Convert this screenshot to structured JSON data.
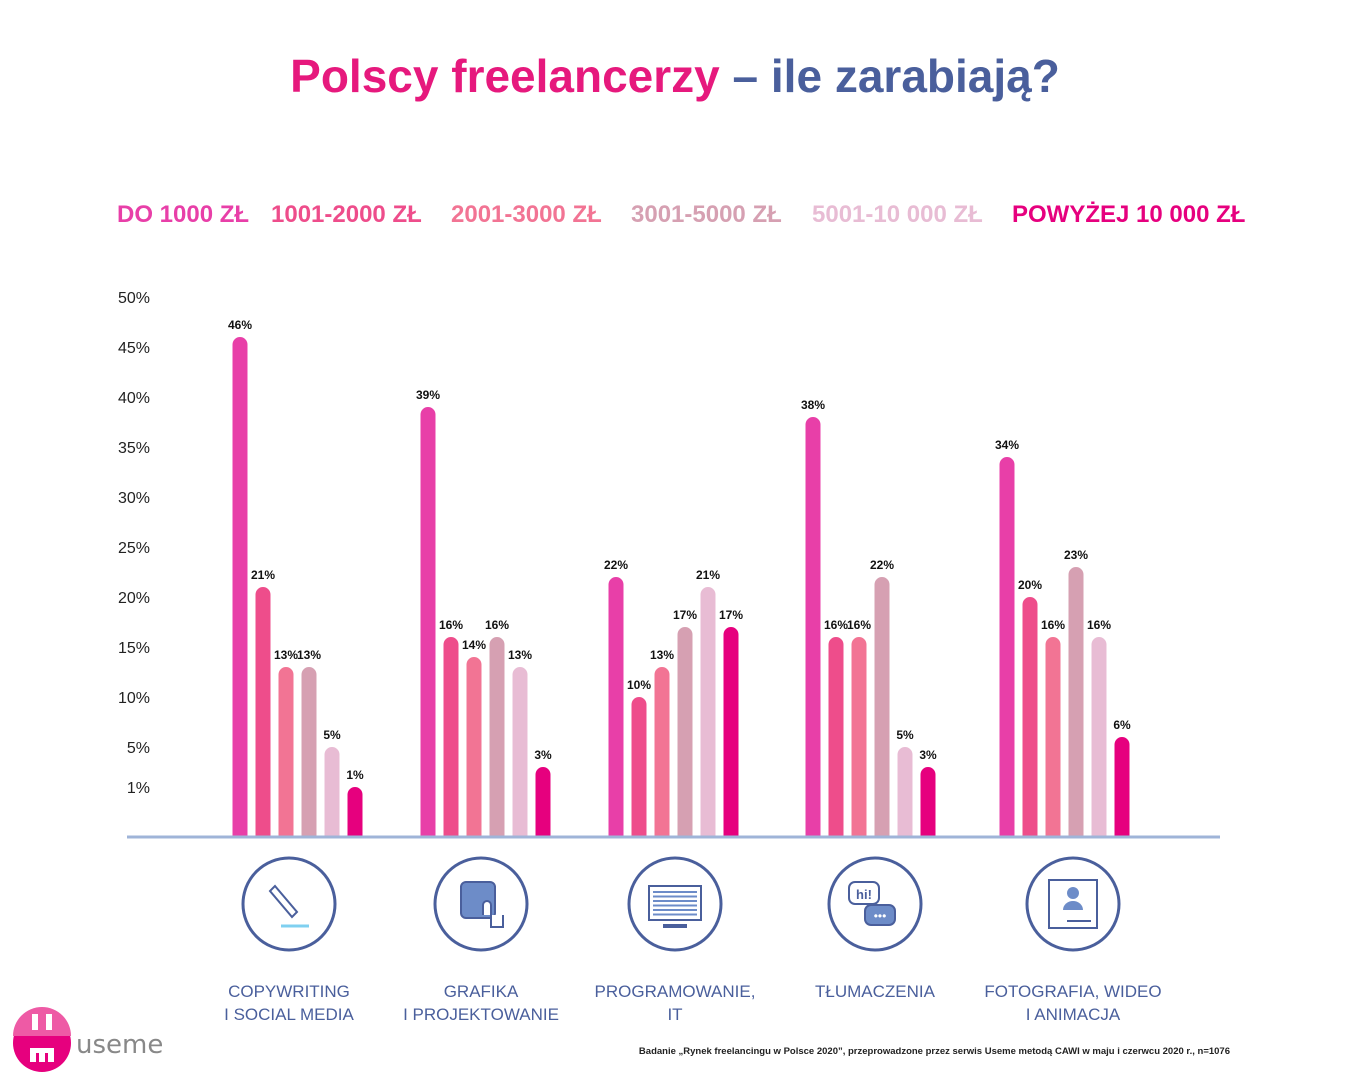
{
  "title": {
    "part1": "Polscy freelancerzy",
    "dash": " – ",
    "part2": "ile zarabiają?"
  },
  "colors": {
    "title_pink": "#e6197d",
    "title_blue": "#4a5f9c",
    "axis": "#9fb4d8",
    "icon_ring": "#4a5f9c",
    "category_text": "#4a5f9c"
  },
  "chart_data": {
    "type": "bar",
    "title": "Polscy freelancerzy – ile zarabiają?",
    "categories": [
      [
        "COPYWRITING",
        "I SOCIAL MEDIA"
      ],
      [
        "GRAFIKA",
        "I PROJEKTOWANIE"
      ],
      [
        "PROGRAMOWANIE,",
        "IT"
      ],
      [
        "TŁUMACZENIA"
      ],
      [
        "FOTOGRAFIA, WIDEO",
        "I ANIMACJA"
      ]
    ],
    "category_icons": [
      "pencil-icon",
      "tablet-stylus-icon",
      "monitor-icon",
      "chat-bubbles-icon",
      "profile-card-icon"
    ],
    "series": [
      {
        "name": "DO 1000 ZŁ",
        "color": "#e83fa8",
        "values": [
          46,
          39,
          22,
          38,
          34
        ]
      },
      {
        "name": "1001-2000 ZŁ",
        "color": "#ee4d8b",
        "values": [
          21,
          16,
          10,
          16,
          20
        ]
      },
      {
        "name": "2001-3000 ZŁ",
        "color": "#f27494",
        "values": [
          13,
          14,
          13,
          16,
          16
        ]
      },
      {
        "name": "3001-5000 ZŁ",
        "color": "#d6a0b2",
        "values": [
          13,
          16,
          17,
          22,
          23
        ]
      },
      {
        "name": "5001-10 000 ZŁ",
        "color": "#e8bcd4",
        "values": [
          5,
          13,
          21,
          5,
          16
        ]
      },
      {
        "name": "POWYŻEJ 10 000 ZŁ",
        "color": "#e6007e",
        "values": [
          1,
          3,
          17,
          3,
          6
        ]
      }
    ],
    "yticks": [
      "1%",
      "5%",
      "10%",
      "15%",
      "20%",
      "25%",
      "30%",
      "35%",
      "40%",
      "45%",
      "50%"
    ],
    "ytick_values": [
      1,
      5,
      10,
      15,
      20,
      25,
      30,
      35,
      40,
      45,
      50
    ],
    "ylim": [
      0,
      50
    ],
    "legend": "top",
    "grid": false,
    "value_suffix": "%"
  },
  "logo": {
    "text": "useme"
  },
  "footnote": "Badanie „Rynek freelancingu w Polsce 2020”, przeprowadzone przez serwis Useme metodą CAWI w maju i czerwcu 2020 r., n=1076"
}
